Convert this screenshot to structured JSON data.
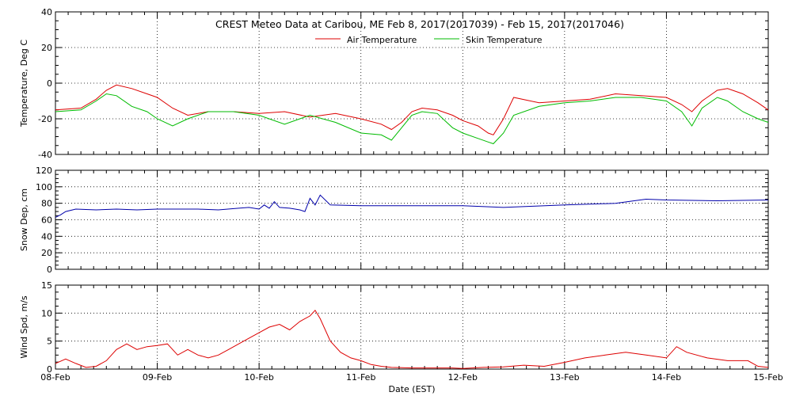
{
  "title": "CREST Meteo Data at Caribou, ME   Feb  8, 2017(2017039) - Feb 15, 2017(2017046)",
  "xlabel": "Date (EST)",
  "x_tick_labels": [
    "08-Feb",
    "09-Feb",
    "10-Feb",
    "11-Feb",
    "12-Feb",
    "13-Feb",
    "14-Feb",
    "15-Feb"
  ],
  "colors": {
    "air": "#dd0000",
    "skin": "#00bb00",
    "snow": "#0000aa",
    "wind": "#dd0000",
    "grid": "#000000"
  },
  "chart_data": [
    {
      "type": "line",
      "ylabel": "Temperature, Deg C",
      "ylim": [
        -40,
        40
      ],
      "yticks": [
        -40,
        -20,
        0,
        20,
        40
      ],
      "xlim": [
        0,
        7
      ],
      "legend_position": "top-center",
      "grid": true,
      "series": [
        {
          "name": "Air Temperature",
          "x": [
            0,
            0.25,
            0.4,
            0.5,
            0.6,
            0.75,
            0.9,
            1.0,
            1.15,
            1.3,
            1.5,
            1.75,
            2.0,
            2.25,
            2.5,
            2.75,
            3.0,
            3.2,
            3.3,
            3.4,
            3.5,
            3.6,
            3.75,
            3.9,
            4.0,
            4.15,
            4.25,
            4.3,
            4.4,
            4.5,
            4.75,
            5.0,
            5.25,
            5.5,
            5.75,
            6.0,
            6.15,
            6.25,
            6.35,
            6.5,
            6.6,
            6.75,
            6.9,
            7.0
          ],
          "y": [
            -15,
            -14,
            -9,
            -4,
            -1,
            -3,
            -6,
            -8,
            -14,
            -18,
            -16,
            -16,
            -17,
            -16,
            -19,
            -17,
            -20,
            -23,
            -26,
            -22,
            -16,
            -14,
            -15,
            -18,
            -21,
            -24,
            -28,
            -29,
            -20,
            -8,
            -11,
            -10,
            -9,
            -6,
            -7,
            -8,
            -12,
            -16,
            -10,
            -4,
            -3,
            -6,
            -11,
            -15
          ]
        },
        {
          "name": "Skin Temperature",
          "x": [
            0,
            0.25,
            0.4,
            0.5,
            0.6,
            0.75,
            0.9,
            1.0,
            1.15,
            1.3,
            1.5,
            1.75,
            2.0,
            2.25,
            2.5,
            2.75,
            3.0,
            3.2,
            3.3,
            3.4,
            3.5,
            3.6,
            3.75,
            3.9,
            4.0,
            4.15,
            4.25,
            4.3,
            4.4,
            4.5,
            4.75,
            5.0,
            5.25,
            5.5,
            5.75,
            6.0,
            6.15,
            6.25,
            6.35,
            6.5,
            6.6,
            6.75,
            6.9,
            7.0
          ],
          "y": [
            -16,
            -15,
            -10,
            -6,
            -7,
            -13,
            -16,
            -20,
            -24,
            -20,
            -16,
            -16,
            -18,
            -23,
            -18,
            -22,
            -28,
            -29,
            -32,
            -25,
            -18,
            -16,
            -17,
            -25,
            -28,
            -31,
            -33,
            -34,
            -28,
            -18,
            -13,
            -11,
            -10,
            -8,
            -8,
            -10,
            -16,
            -24,
            -14,
            -8,
            -10,
            -16,
            -20,
            -22
          ]
        }
      ]
    },
    {
      "type": "line",
      "ylabel": "Snow Dep, cm",
      "ylim": [
        0,
        120
      ],
      "yticks": [
        0,
        20,
        40,
        60,
        80,
        100,
        120
      ],
      "xlim": [
        0,
        7
      ],
      "grid": true,
      "series": [
        {
          "x": [
            0,
            0.05,
            0.1,
            0.2,
            0.4,
            0.6,
            0.8,
            1.0,
            1.2,
            1.4,
            1.6,
            1.8,
            1.9,
            2.0,
            2.05,
            2.1,
            2.15,
            2.2,
            2.3,
            2.4,
            2.45,
            2.5,
            2.55,
            2.6,
            2.7,
            3.0,
            3.5,
            4.0,
            4.4,
            5.0,
            5.5,
            5.8,
            6.0,
            6.5,
            7.0
          ],
          "y": [
            63,
            66,
            70,
            73,
            72,
            73,
            72,
            73,
            73,
            73,
            72,
            74,
            75,
            73,
            78,
            74,
            82,
            75,
            74,
            72,
            70,
            86,
            78,
            90,
            78,
            77,
            77,
            77,
            75,
            78,
            80,
            85,
            84,
            83,
            84
          ]
        }
      ]
    },
    {
      "type": "line",
      "ylabel": "Wind Spd, m/s",
      "ylim": [
        0,
        15
      ],
      "yticks": [
        0,
        5,
        10,
        15
      ],
      "xlim": [
        0,
        7
      ],
      "grid": true,
      "series": [
        {
          "x": [
            0,
            0.1,
            0.2,
            0.3,
            0.4,
            0.5,
            0.6,
            0.7,
            0.8,
            0.9,
            1.0,
            1.1,
            1.2,
            1.3,
            1.4,
            1.5,
            1.6,
            1.7,
            1.8,
            1.9,
            2.0,
            2.1,
            2.2,
            2.3,
            2.4,
            2.5,
            2.55,
            2.6,
            2.7,
            2.8,
            2.9,
            3.0,
            3.1,
            3.2,
            3.3,
            3.5,
            3.7,
            3.9,
            4.0,
            4.2,
            4.4,
            4.6,
            4.8,
            5.0,
            5.2,
            5.4,
            5.6,
            5.8,
            6.0,
            6.1,
            6.2,
            6.4,
            6.6,
            6.8,
            6.9,
            7.0
          ],
          "y": [
            1,
            1.8,
            1,
            0.3,
            0.5,
            1.5,
            3.5,
            4.5,
            3.5,
            4,
            4.2,
            4.5,
            2.5,
            3.5,
            2.5,
            2,
            2.5,
            3.5,
            4.5,
            5.5,
            6.5,
            7.5,
            8,
            7,
            8.5,
            9.5,
            10.5,
            9,
            5,
            3,
            2,
            1.5,
            0.8,
            0.5,
            0.3,
            0.2,
            0.2,
            0.2,
            0.1,
            0.3,
            0.4,
            0.7,
            0.5,
            1.2,
            2,
            2.5,
            3,
            2.5,
            2,
            4,
            3,
            2,
            1.5,
            1.5,
            0.5,
            0.3
          ]
        }
      ]
    }
  ]
}
